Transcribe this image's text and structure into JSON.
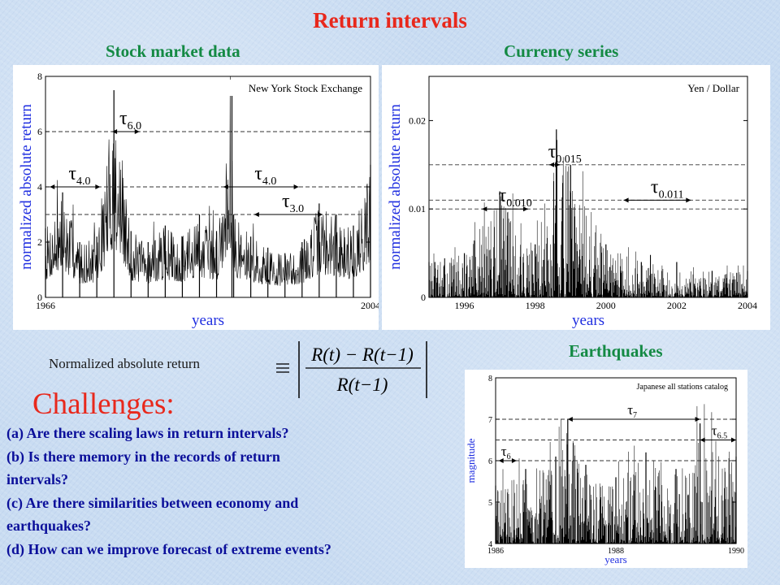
{
  "slide": {
    "title": "Return intervals",
    "sub_stock": "Stock market data",
    "sub_currency": "Currency series",
    "sub_earthquakes": "Earthquakes",
    "formula_label": "Normalized absolute return",
    "challenges_title": "Challenges:",
    "questions": [
      "(a) Are there scaling laws in return intervals?",
      "(b) Is there memory in the  records of return",
      "      intervals?",
      "(c) Are there similarities between economy and",
      "     earthquakes?",
      "(d) How can we improve forecast of extreme events?"
    ],
    "colors": {
      "title": "#e8281c",
      "subtitle": "#148a44",
      "axis_label": "#1f2ee0",
      "question": "#0b0f9a"
    }
  },
  "chart_data": [
    {
      "type": "line",
      "inset_label": "New York Stock Exchange",
      "xlabel": "years",
      "ylabel": "normalized absolute return",
      "xlim": [
        1966,
        2004
      ],
      "ylim": [
        0,
        8
      ],
      "x_ticks": [
        1966,
        2004
      ],
      "y_ticks": [
        0,
        2,
        4,
        6,
        8
      ],
      "thresholds": [
        3.0,
        4.0,
        6.0
      ],
      "series": [
        {
          "x": [
            1966,
            1968,
            1970,
            1972,
            1974,
            1976,
            1978,
            1980,
            1982,
            1984,
            1986,
            1987.8,
            1988,
            1990,
            1992,
            1994,
            1996,
            1998,
            2000,
            2002,
            2004
          ],
          "values": [
            2.5,
            3.8,
            2.0,
            2.2,
            7.5,
            2.4,
            2.0,
            2.6,
            2.2,
            3.0,
            2.4,
            7.6,
            3.0,
            2.2,
            1.8,
            1.6,
            2.0,
            3.4,
            3.0,
            2.6,
            4.8
          ]
        }
      ],
      "annotations": [
        {
          "text": "τ6.0",
          "from": 1973.8,
          "to": 1977.0,
          "level": 6.0
        },
        {
          "text": "τ4.0",
          "from": 1966.5,
          "to": 1972.4,
          "level": 4.0
        },
        {
          "text": "τ4.0",
          "from": 1986.8,
          "to": 1995.6,
          "level": 4.0
        },
        {
          "text": "τ3.0",
          "from": 1990.4,
          "to": 1998.4,
          "level": 3.0
        }
      ]
    },
    {
      "type": "line",
      "inset_label": "Yen / Dollar",
      "xlabel": "years",
      "ylabel": "normalized absolute return",
      "xlim": [
        1995,
        2004
      ],
      "ylim": [
        0,
        0.025
      ],
      "x_ticks": [
        1996,
        1998,
        2000,
        2002,
        2004
      ],
      "y_ticks": [
        0,
        0.01,
        0.02
      ],
      "thresholds": [
        0.01,
        0.011,
        0.015
      ],
      "series": [
        {
          "x": [
            1995,
            1996,
            1997,
            1998,
            1998.6,
            1999,
            2000,
            2001,
            2002,
            2003,
            2004
          ],
          "values": [
            0.004,
            0.005,
            0.012,
            0.006,
            0.019,
            0.015,
            0.006,
            0.004,
            0.004,
            0.003,
            0.003
          ]
        }
      ],
      "annotations": [
        {
          "text": "τ0.010",
          "from": 1996.5,
          "to": 1997.8,
          "level": 0.01
        },
        {
          "text": "τ0.015",
          "from": 1998.4,
          "to": 1998.7,
          "level": 0.015
        },
        {
          "text": "τ0.011",
          "from": 2000.5,
          "to": 2002.4,
          "level": 0.011
        }
      ]
    },
    {
      "type": "line",
      "inset_label": "Japanese all stations catalog",
      "xlabel": "years",
      "ylabel": "magnitude",
      "xlim": [
        1986,
        1990
      ],
      "ylim": [
        4,
        8
      ],
      "x_ticks": [
        1986,
        1988,
        1990
      ],
      "y_ticks": [
        4,
        5,
        6,
        7,
        8
      ],
      "thresholds": [
        6.0,
        6.5,
        7.0
      ],
      "series": [
        {
          "x": [
            1986,
            1986.5,
            1987,
            1987.2,
            1987.5,
            1988,
            1988.5,
            1989,
            1989.4,
            1990
          ],
          "values": [
            5.4,
            5.8,
            6.1,
            7.0,
            5.9,
            5.6,
            6.2,
            5.8,
            6.9,
            6.1
          ]
        }
      ],
      "annotations": [
        {
          "text": "τ7",
          "from": 1987.2,
          "to": 1989.4,
          "level": 7.0
        },
        {
          "text": "τ6.5",
          "from": 1989.4,
          "to": 1990.0,
          "level": 6.5
        },
        {
          "text": "τ6",
          "from": 1986.05,
          "to": 1986.35,
          "level": 6.0
        }
      ]
    }
  ]
}
